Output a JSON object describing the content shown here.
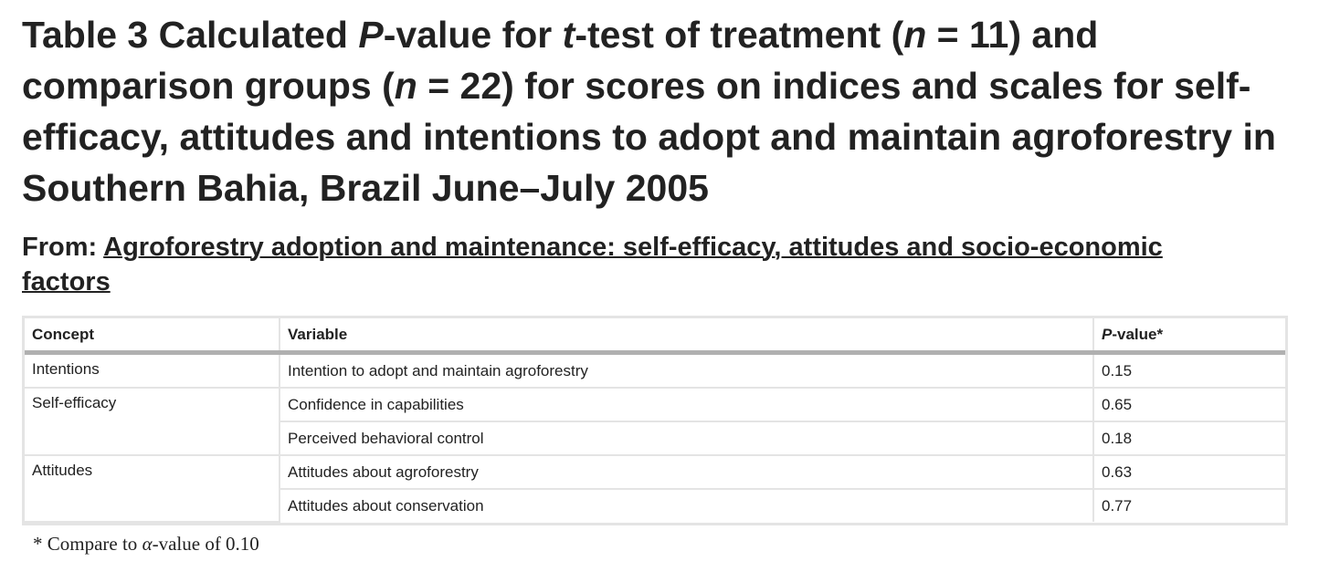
{
  "title": {
    "part1": "Table 3 Calculated ",
    "p_symbol": "P",
    "part2": "-value for ",
    "t_symbol": "t",
    "part3": "-test of treatment (",
    "n1_symbol": "n",
    "part4": " = 11) and comparison groups (",
    "n2_symbol": "n",
    "part5": " = 22) for scores on indices and scales for self-efficacy, attitudes and intentions to adopt and maintain agroforestry in Southern Bahia, Brazil June–July 2005"
  },
  "source": {
    "prefix": "From: ",
    "link_text": "Agroforestry adoption and maintenance: self-efficacy, attitudes and socio-economic factors"
  },
  "table": {
    "headers": {
      "concept": "Concept",
      "variable": "Variable",
      "pvalue_symbol": "P",
      "pvalue_rest": "-value*"
    },
    "rows": [
      {
        "concept": "Intentions",
        "variable": "Intention to adopt and maintain agroforestry",
        "pvalue": "0.15"
      },
      {
        "concept": "Self-efficacy",
        "variable": "Confidence in capabilities",
        "pvalue": "0.65"
      },
      {
        "concept": "",
        "variable": "Perceived behavioral control",
        "pvalue": "0.18"
      },
      {
        "concept": "Attitudes",
        "variable": "Attitudes about agroforestry",
        "pvalue": "0.63"
      },
      {
        "concept": "",
        "variable": "Attitudes about conservation",
        "pvalue": "0.77"
      }
    ]
  },
  "footnote": {
    "prefix": "* Compare to ",
    "alpha": "α",
    "suffix": "-value of 0.10"
  }
}
